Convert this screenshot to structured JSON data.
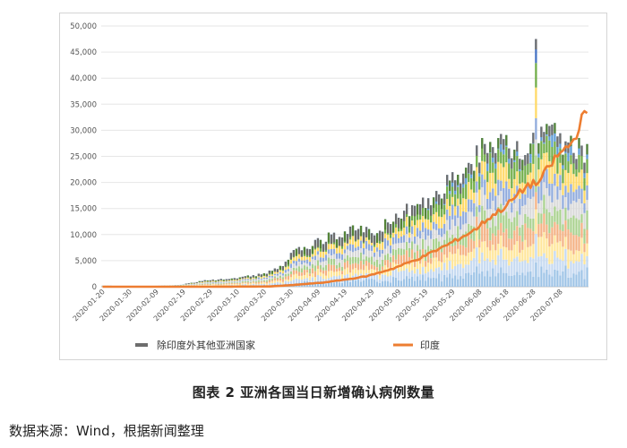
{
  "caption": "图表 2 亚洲各国当日新增确认病例数量",
  "source": "数据来源：Wind，根据新闻整理",
  "chart_data": {
    "type": "bar",
    "ylim": [
      0,
      50000
    ],
    "yticks": [
      "0",
      "5,000",
      "10,000",
      "15,000",
      "20,000",
      "25,000",
      "30,000",
      "35,000",
      "40,000",
      "45,000",
      "50,000"
    ],
    "xtick_labels": [
      "2020-01-20",
      "2020-01-30",
      "2020-02-09",
      "2020-02-19",
      "2020-02-29",
      "2020-03-10",
      "2020-03-20",
      "2020-03-30",
      "2020-04-09",
      "2020-04-19",
      "2020-04-29",
      "2020-05-09",
      "2020-05-19",
      "2020-05-29",
      "2020-06-08",
      "2020-06-18",
      "2020-06-28",
      "2020-07-08"
    ],
    "legend": {
      "placement": "bottom"
    },
    "series": [
      {
        "name": "除印度外其他亚洲国家",
        "kind": "stacked-bar",
        "color": "#6d6d6d",
        "anchors": [
          [
            0,
            200
          ],
          [
            9,
            150
          ],
          [
            16,
            100
          ],
          [
            28,
            300
          ],
          [
            38,
            1200
          ],
          [
            48,
            1600
          ],
          [
            60,
            2500
          ],
          [
            66,
            3800
          ],
          [
            72,
            7000
          ],
          [
            80,
            8800
          ],
          [
            90,
            10500
          ],
          [
            96,
            11200
          ],
          [
            100,
            10800
          ],
          [
            108,
            13000
          ],
          [
            118,
            16000
          ],
          [
            122,
            17000
          ],
          [
            128,
            20000
          ],
          [
            138,
            24500
          ],
          [
            143,
            27000
          ],
          [
            150,
            28000
          ],
          [
            158,
            27500
          ],
          [
            162,
            30000
          ],
          [
            170,
            29000
          ],
          [
            175,
            27000
          ]
        ],
        "spike": {
          "day": 161,
          "value": 47500
        }
      },
      {
        "name": "印度",
        "kind": "line",
        "color": "#ed7d31",
        "anchors": [
          [
            0,
            0
          ],
          [
            40,
            0
          ],
          [
            62,
            50
          ],
          [
            70,
            300
          ],
          [
            82,
            800
          ],
          [
            92,
            1500
          ],
          [
            98,
            2000
          ],
          [
            108,
            3500
          ],
          [
            118,
            5500
          ],
          [
            128,
            8000
          ],
          [
            138,
            10800
          ],
          [
            143,
            13000
          ],
          [
            150,
            15500
          ],
          [
            158,
            19500
          ],
          [
            162,
            20000
          ],
          [
            168,
            24500
          ],
          [
            172,
            26500
          ],
          [
            175,
            28000
          ],
          [
            178,
            32500
          ]
        ]
      }
    ]
  }
}
